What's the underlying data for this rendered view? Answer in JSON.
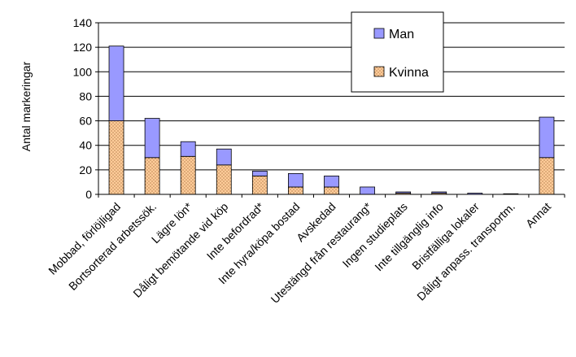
{
  "chart_data": {
    "type": "bar",
    "stacked": true,
    "title": "",
    "xlabel": "",
    "ylabel": "Antal markeringar",
    "ylim": [
      0,
      140
    ],
    "yticks": [
      0,
      20,
      40,
      60,
      80,
      100,
      120,
      140
    ],
    "grid": true,
    "legend_position": "top-right",
    "categories": [
      "Mobbad, förlöjligad",
      "Bortsorterad arbetssök.",
      "Lägre lön*",
      "Dåligt bemötande vid köp",
      "Inte befordrad*",
      "Inte hyra/köpa bostad",
      "Avskedad",
      "Utestängd från restaurang*",
      "Ingen studieplats",
      "Inte tillgänglig info",
      "Bristfälliga lokaler",
      "Dåligt anpass. transportm.",
      "Annat"
    ],
    "series": [
      {
        "name": "Kvinna",
        "color": "#FFCC99",
        "pattern": "dotted",
        "values": [
          60,
          30,
          31,
          24,
          15,
          6,
          6,
          0,
          1,
          1,
          0,
          0,
          30
        ]
      },
      {
        "name": "Man",
        "color": "#9999FF",
        "values": [
          61,
          32,
          12,
          13,
          4,
          11,
          9,
          6,
          1,
          1,
          1,
          0.5,
          33
        ]
      }
    ]
  }
}
